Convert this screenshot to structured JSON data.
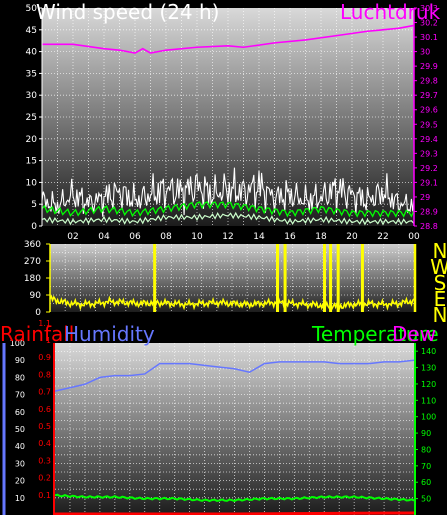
{
  "colors": {
    "wind": "#ffffff",
    "wind_avg": "#00ff00",
    "wind_low": "#ccffcc",
    "pressure": "#ff00ff",
    "direction": "#ffff00",
    "rain": "#ff0000",
    "humidity": "#6677ff",
    "temperature": "#00ff00",
    "dew": "#ff00ff",
    "rain_line": "#ff0000"
  },
  "chart_data": [
    {
      "type": "line",
      "title": "Wind speed (24 h)",
      "title_right": "Luchtdruk",
      "x_ticks": [
        "02",
        "04",
        "06",
        "08",
        "10",
        "12",
        "14",
        "16",
        "18",
        "20",
        "22",
        "00"
      ],
      "y_left_ticks": [
        "0",
        "5",
        "10",
        "15",
        "20",
        "25",
        "30",
        "35",
        "40",
        "45",
        "50"
      ],
      "y_right_ticks": [
        "28.8",
        "28.9",
        "29",
        "29.1",
        "29.2",
        "29.3",
        "29.4",
        "29.5",
        "29.6",
        "29.7",
        "29.8",
        "29.9",
        "30",
        "30.1",
        "30.2",
        "30.3"
      ],
      "ylim_left": [
        0,
        50
      ],
      "ylim_right": [
        28.8,
        30.3
      ],
      "series": [
        {
          "name": "pressure",
          "axis": "right",
          "x": [
            0,
            2,
            4,
            5,
            6,
            6.5,
            7,
            8,
            10,
            12,
            13,
            15,
            17,
            19,
            21,
            23,
            24
          ],
          "values": [
            30.05,
            30.05,
            30.02,
            30.01,
            29.99,
            30.02,
            29.99,
            30.01,
            30.03,
            30.04,
            30.03,
            30.06,
            30.08,
            30.11,
            30.14,
            30.16,
            30.18
          ]
        },
        {
          "name": "gust",
          "axis": "left",
          "x": [
            0,
            1,
            2,
            3,
            4,
            5,
            6,
            7,
            8,
            9,
            10,
            11,
            12,
            13,
            14,
            15,
            16,
            17,
            18,
            19,
            20,
            21,
            22,
            23,
            24
          ],
          "values": [
            9,
            7,
            11,
            8,
            10,
            12,
            9,
            11,
            13,
            12,
            14,
            11,
            13,
            12,
            14,
            10,
            11,
            9,
            10,
            13,
            11,
            9,
            12,
            8,
            7
          ]
        },
        {
          "name": "average",
          "axis": "left",
          "x": [
            0,
            2,
            4,
            6,
            8,
            10,
            12,
            14,
            16,
            18,
            20,
            22,
            24
          ],
          "values": [
            4,
            3,
            4,
            3,
            4,
            5,
            5,
            4,
            3,
            4,
            3,
            3,
            3
          ]
        },
        {
          "name": "low",
          "axis": "left",
          "x": [
            0,
            2,
            4,
            6,
            8,
            10,
            12,
            14,
            16,
            18,
            20,
            22,
            24
          ],
          "values": [
            1.5,
            1,
            1.5,
            1,
            2,
            2,
            2.5,
            2,
            1,
            1.5,
            1,
            1,
            1
          ]
        }
      ]
    },
    {
      "type": "line",
      "title": "Wind direction",
      "y_ticks": [
        "0",
        "90",
        "180",
        "270",
        "360"
      ],
      "ylim": [
        0,
        360
      ],
      "compass": [
        "N",
        "W",
        "S",
        "E",
        "N"
      ],
      "series": [
        {
          "name": "direction",
          "x": [
            0,
            1,
            2,
            3,
            4,
            5,
            6,
            7,
            8,
            9,
            10,
            11,
            12,
            13,
            14,
            15,
            16,
            17,
            18,
            19,
            20,
            21,
            22,
            23,
            24
          ],
          "values": [
            70,
            50,
            40,
            45,
            55,
            50,
            45,
            50,
            45,
            40,
            45,
            50,
            45,
            40,
            45,
            50,
            45,
            40,
            35,
            30,
            40,
            45,
            40,
            45,
            60
          ]
        }
      ],
      "spikes_x": [
        6.9,
        15.0,
        15.5,
        18.1,
        18.5,
        19.0,
        20.6
      ]
    },
    {
      "type": "line",
      "title_left": "Rainfall",
      "title_mid": "Humidity",
      "title_right": "Temperature",
      "title_right2": "Dew",
      "y_left_ticks": [
        "0",
        "10",
        "20",
        "30",
        "40",
        "50",
        "60",
        "70",
        "80",
        "90",
        "100"
      ],
      "y_rain_ticks": [
        "0.1",
        "0.2",
        "0.3",
        "0.4",
        "0.5",
        "0.6",
        "0.7",
        "0.8",
        "0.9",
        "1",
        "1.1"
      ],
      "y_right_ticks": [
        "50",
        "60",
        "70",
        "80",
        "90",
        "100",
        "110",
        "120",
        "130",
        "140"
      ],
      "ylim_left": [
        0,
        100
      ],
      "ylim_right": [
        40,
        145
      ],
      "series": [
        {
          "name": "humidity",
          "axis": "left",
          "x": [
            0,
            1,
            2,
            3,
            4,
            5,
            6,
            7,
            8,
            9,
            10,
            11,
            12,
            13,
            14,
            15,
            16,
            17,
            18,
            19,
            20,
            21,
            22,
            23,
            24
          ],
          "values": [
            72,
            74,
            76,
            80,
            81,
            81,
            82,
            88,
            88,
            88,
            87,
            86,
            85,
            83,
            88,
            89,
            89,
            89,
            89,
            88,
            88,
            88,
            89,
            89,
            90
          ]
        },
        {
          "name": "temperature",
          "axis": "right",
          "x": [
            0,
            2,
            4,
            6,
            8,
            10,
            12,
            14,
            16,
            18,
            20,
            22,
            24
          ],
          "values": [
            52,
            51,
            51,
            50,
            50,
            49,
            49,
            50,
            50,
            51,
            51,
            50,
            49
          ]
        },
        {
          "name": "rain",
          "axis": "left",
          "x": [
            0,
            12,
            16,
            20,
            24
          ],
          "values": [
            0,
            0,
            0.2,
            0.4,
            0.6
          ]
        }
      ]
    }
  ]
}
